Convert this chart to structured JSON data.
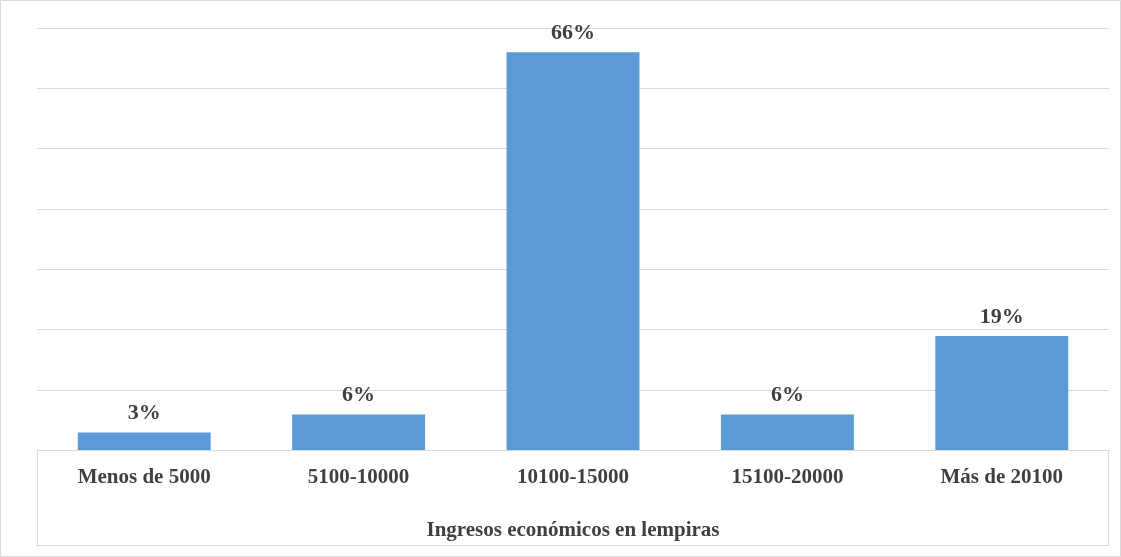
{
  "chart_data": {
    "type": "bar",
    "xlabel": "Ingresos económicos en lempiras",
    "categories": [
      "Menos de 5000",
      "5100-10000",
      "10100-15000",
      "15100-20000",
      "Más de 20100"
    ],
    "values": [
      3,
      6,
      66,
      6,
      19
    ],
    "color": "#5b9bd5",
    "value_labels": [
      "3%",
      "6%",
      "66%",
      "6%",
      "19%"
    ],
    "ylim": [
      0,
      70
    ],
    "yticks": [
      {
        "value": 0,
        "label": null
      },
      {
        "value": 10,
        "label": null
      },
      {
        "value": 20,
        "label": null
      },
      {
        "value": 30,
        "label": null
      },
      {
        "value": 40,
        "label": null
      },
      {
        "value": 50,
        "label": null
      },
      {
        "value": 60,
        "label": null
      },
      {
        "value": 70,
        "label": null
      }
    ],
    "grid": "y",
    "tick_labels": "x",
    "legend": false
  }
}
